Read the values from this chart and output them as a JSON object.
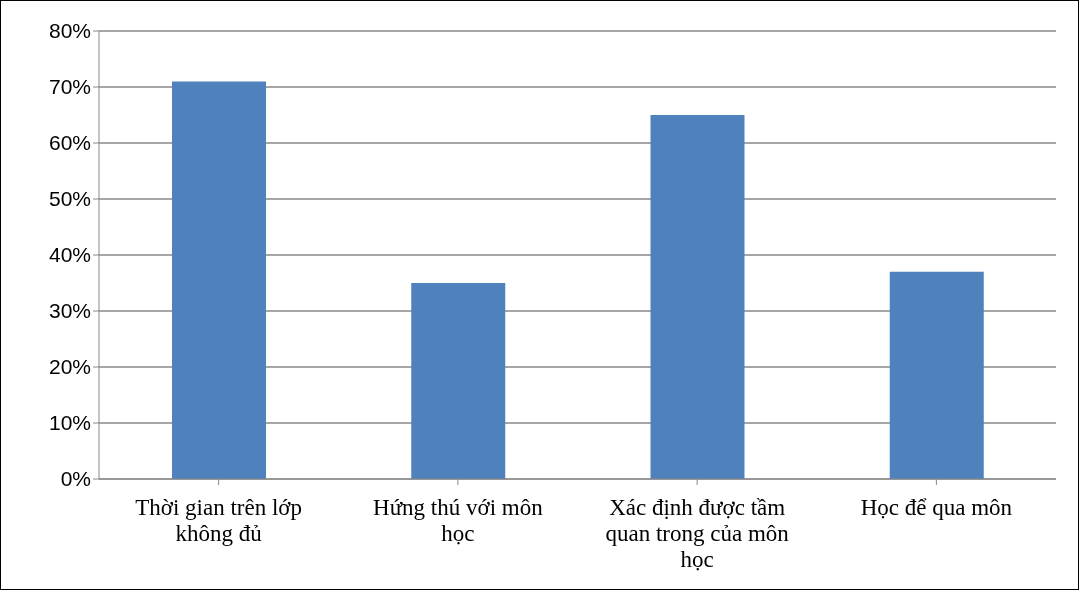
{
  "chart_data": {
    "type": "bar",
    "categories": [
      "Thời gian trên lớp không đủ",
      "Hứng thú với môn học",
      "Xác định được tầm quan trong của môn học",
      "Học để qua môn"
    ],
    "values": [
      71,
      35,
      65,
      37
    ],
    "color": "#4f81bd",
    "ylim": [
      0,
      80
    ],
    "yticks": [
      {
        "value": 0,
        "label": "0%"
      },
      {
        "value": 10,
        "label": "10%"
      },
      {
        "value": 20,
        "label": "20%"
      },
      {
        "value": 30,
        "label": "30%"
      },
      {
        "value": 40,
        "label": "40%"
      },
      {
        "value": 50,
        "label": "50%"
      },
      {
        "value": 60,
        "label": "60%"
      },
      {
        "value": 70,
        "label": "70%"
      },
      {
        "value": 80,
        "label": "80%"
      }
    ],
    "grid": "y"
  }
}
